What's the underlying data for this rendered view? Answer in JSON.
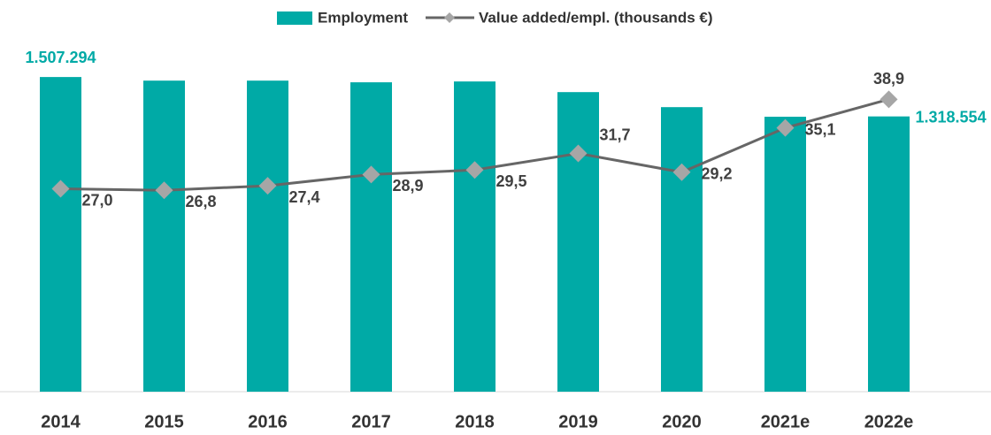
{
  "chart_data": {
    "type": "bar",
    "categories": [
      "2014",
      "2015",
      "2016",
      "2017",
      "2018",
      "2019",
      "2020",
      "2021e",
      "2022e"
    ],
    "series": [
      {
        "name": "Employment",
        "type": "bar",
        "color": "#00aaa6",
        "values": [
          1507294,
          1490000,
          1490000,
          1482000,
          1486000,
          1435000,
          1363000,
          1317000,
          1318554
        ],
        "value_labels": [
          "1.507.294",
          null,
          null,
          null,
          null,
          null,
          null,
          null,
          "1.318.554"
        ]
      },
      {
        "name": "Value added/empl. (thousands €)",
        "type": "line",
        "axis": "y2",
        "color": "#666666",
        "marker_color": "#a6a6a6",
        "values": [
          27.0,
          26.8,
          27.4,
          28.9,
          29.5,
          31.7,
          29.2,
          35.1,
          38.9
        ],
        "value_labels": [
          "27,0",
          "26,8",
          "27,4",
          "28,9",
          "29,5",
          "31,7",
          "29,2",
          "35,1",
          "38,9"
        ]
      }
    ],
    "ylim": [
      0,
      1800000
    ],
    "y2lim": [
      0,
      50
    ]
  }
}
